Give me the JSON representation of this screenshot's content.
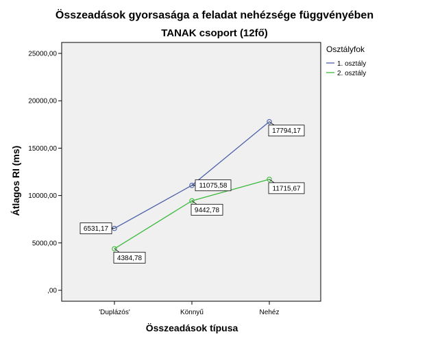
{
  "chart_data": {
    "type": "line",
    "title": "Összeadások gyorsasága a feladat nehézsége függvényében",
    "subtitle": "TANAK csoport (12fő)",
    "xlabel": "Összeadások típusa",
    "ylabel": "Átlagos RI (ms)",
    "categories": [
      "'Duplázós'",
      "Könnyű",
      "Nehéz"
    ],
    "ylim": [
      0,
      25000
    ],
    "yticks": [
      0,
      5000,
      10000,
      15000,
      20000,
      25000
    ],
    "ytick_labels": [
      ",00",
      "5000,00",
      "10000,00",
      "15000,00",
      "20000,00",
      "25000,00"
    ],
    "legend_title": "Osztályfok",
    "legend_position": "right",
    "series": [
      {
        "name": "1. osztály",
        "color": "#4a5fa8",
        "values": [
          6531.17,
          11075.58,
          17794.17
        ],
        "labels": [
          "6531,17",
          "11075,58",
          "17794,17"
        ]
      },
      {
        "name": "2. osztály",
        "color": "#3dba3d",
        "values": [
          4384.78,
          9442.78,
          11715.67
        ],
        "labels": [
          "4384,78",
          "9442,78",
          "11715,67"
        ]
      }
    ]
  }
}
